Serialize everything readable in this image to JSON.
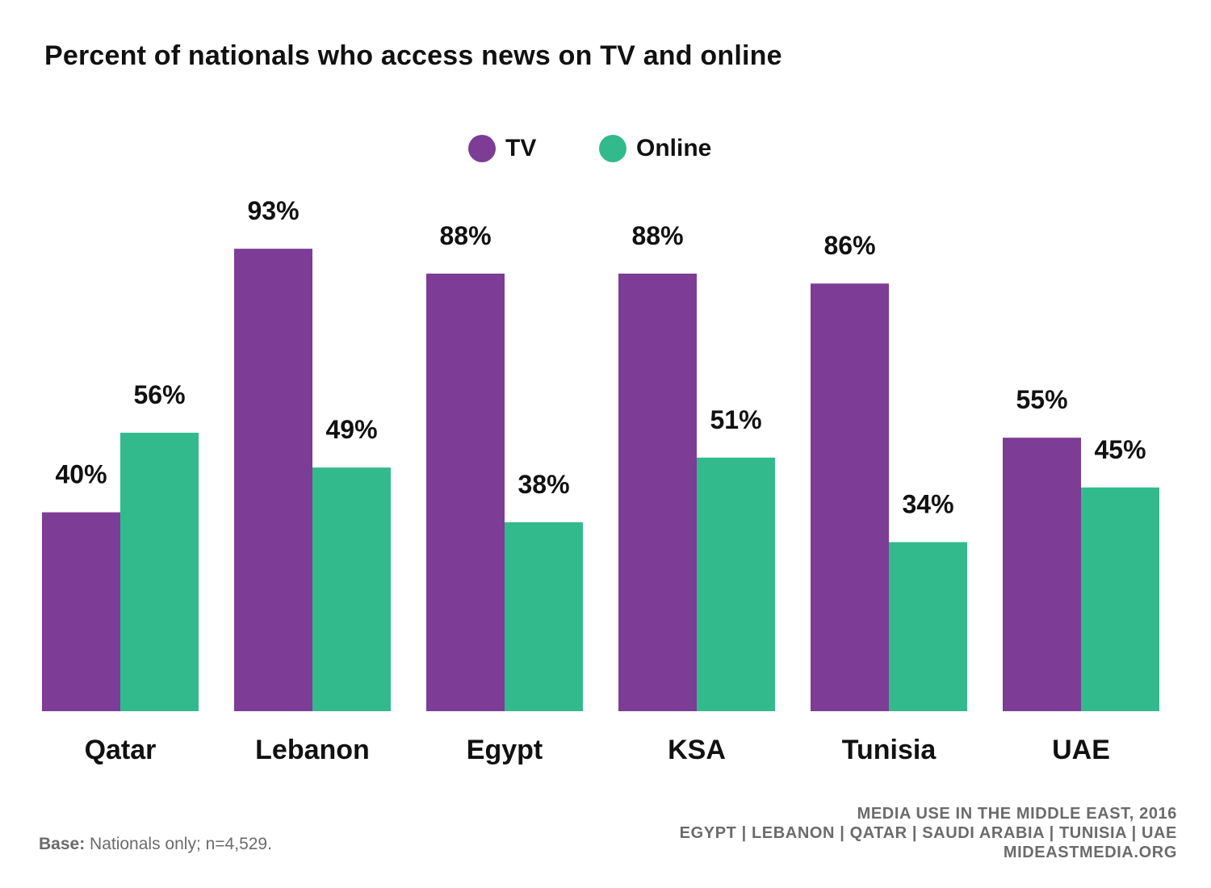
{
  "title": "Percent of nationals who access news on TV and online",
  "legend": [
    {
      "label": "TV",
      "color": "#7d3c95"
    },
    {
      "label": "Online",
      "color": "#33ba8c"
    }
  ],
  "chart_data": {
    "type": "bar",
    "title": "Percent of nationals who access news on TV and online",
    "categories": [
      "Qatar",
      "Lebanon",
      "Egypt",
      "KSA",
      "Tunisia",
      "UAE"
    ],
    "series": [
      {
        "name": "TV",
        "color": "#7d3c95",
        "values": [
          40,
          93,
          88,
          88,
          86,
          55
        ],
        "labels": [
          "40%",
          "93%",
          "88%",
          "88%",
          "86%",
          "55%"
        ]
      },
      {
        "name": "Online",
        "color": "#33ba8c",
        "values": [
          56,
          49,
          38,
          51,
          34,
          45
        ],
        "labels": [
          "56%",
          "49%",
          "38%",
          "51%",
          "34%",
          "45%"
        ]
      }
    ],
    "xlabel": "",
    "ylabel": "",
    "ylim": [
      0,
      100
    ],
    "grid": false,
    "legend_position": "top-center"
  },
  "footer": {
    "base_label": "Base:",
    "base_text": " Nationals only; n=4,529.",
    "source_lines": [
      "MEDIA USE IN THE MIDDLE EAST, 2016",
      "EGYPT | LEBANON | QATAR | SAUDI ARABIA | TUNISIA | UAE",
      "MIDEASTMEDIA.ORG"
    ]
  }
}
